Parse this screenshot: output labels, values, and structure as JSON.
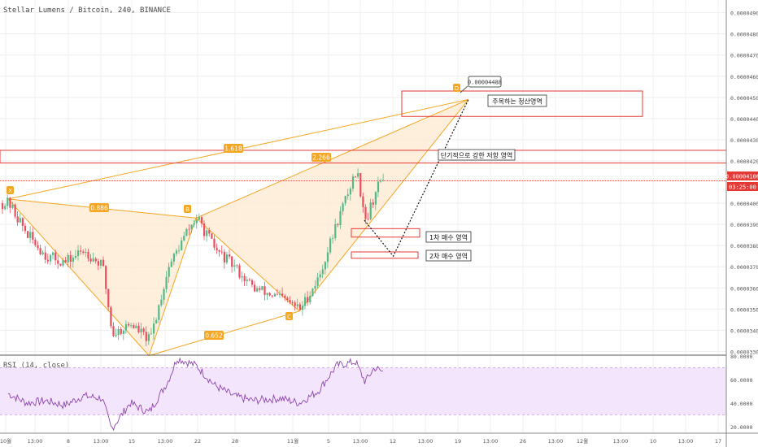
{
  "header": {
    "symbol_title": "Stellar Lumens / Bitcoin, 240, BINANCE"
  },
  "price_axis": {
    "labels": [
      "0.00004900",
      "0.00004800",
      "0.00004700",
      "0.00004600",
      "0.00004500",
      "0.00004400",
      "0.00004300",
      "0.00004200",
      "0.00004000",
      "0.00003900",
      "0.00003800",
      "0.00003700",
      "0.00003600",
      "0.00003500",
      "0.00003400",
      "0.00003300"
    ],
    "current_price": "0.00004106",
    "countdown": "03:25:00"
  },
  "time_axis": {
    "labels": [
      "10월",
      "13:00",
      "8",
      "13:00",
      "15",
      "13:00",
      "22",
      "28",
      "11월",
      "5",
      "13:00",
      "12",
      "13:00",
      "19",
      "13:00",
      "26",
      "13:00",
      "12월",
      "13:00",
      "10",
      "13:00",
      "17"
    ]
  },
  "pattern": {
    "points": [
      "X",
      "B",
      "C",
      "D"
    ],
    "ratios": [
      "0.886",
      "0.652",
      "2.266",
      "1.618"
    ],
    "d_price_label": "0.00004488"
  },
  "annotations": {
    "target_zone": "주목하는 청산영역",
    "resistance_zone": "단기적으로 강한 저항 영역",
    "buy_zone_1": "1차 매수 영역",
    "buy_zone_2": "2차 매수 영역"
  },
  "rsi": {
    "title": "RSI (14, close)",
    "axis_labels": [
      "80.0000",
      "60.0000",
      "40.0000",
      "20.0000"
    ]
  },
  "colors": {
    "candle_up": "#53b987",
    "candle_down": "#eb4d5c",
    "pattern_line": "#f5a623",
    "pattern_fill": "#fde9d2",
    "zone_line": "#e53935",
    "rsi_line": "#8e44ad",
    "rsi_band": "#f3e5fc"
  },
  "chart_data": {
    "type": "candlestick",
    "title": "Stellar Lumens / Bitcoin, 240, BINANCE",
    "ylim": [
      3.29e-05,
      4.96e-05
    ],
    "price_path": [
      [
        "2018-10-01",
        4e-05
      ],
      [
        "2018-10-03",
        3.85e-05
      ],
      [
        "2018-10-05",
        3.75e-05
      ],
      [
        "2018-10-07",
        3.72e-05
      ],
      [
        "2018-10-09",
        3.78e-05
      ],
      [
        "2018-10-11",
        3.7e-05
      ],
      [
        "2018-10-12",
        3.38e-05
      ],
      [
        "2018-10-14",
        3.43e-05
      ],
      [
        "2018-10-16",
        3.35e-05
      ],
      [
        "2018-10-18",
        3.7e-05
      ],
      [
        "2018-10-20",
        3.87e-05
      ],
      [
        "2018-10-21",
        3.93e-05
      ],
      [
        "2018-10-23",
        3.78e-05
      ],
      [
        "2018-10-25",
        3.7e-05
      ],
      [
        "2018-10-27",
        3.6e-05
      ],
      [
        "2018-10-30",
        3.55e-05
      ],
      [
        "2018-11-01",
        3.5e-05
      ],
      [
        "2018-11-03",
        3.65e-05
      ],
      [
        "2018-11-05",
        3.92e-05
      ],
      [
        "2018-11-07",
        4.16e-05
      ],
      [
        "2018-11-08",
        3.92e-05
      ],
      [
        "2018-11-09",
        4.05e-05
      ],
      [
        "2018-11-10",
        4.15e-05
      ]
    ],
    "projection": [
      [
        "2018-11-10",
        3.92e-05
      ],
      [
        "2018-11-11",
        3.75e-05
      ],
      [
        "2018-11-19",
        4.49e-05
      ]
    ],
    "pattern_points": {
      "X": [
        "2018-10-01",
        4.02e-05
      ],
      "A": [
        "2018-10-16",
        3.28e-05
      ],
      "B": [
        "2018-10-21",
        3.93e-05
      ],
      "C": [
        "2018-11-01",
        3.49e-05
      ],
      "D": [
        "2018-11-19",
        4.49e-05
      ]
    },
    "zones": [
      {
        "label": "주목하는 청산영역",
        "y": [
          4.41e-05,
          4.53e-05
        ]
      },
      {
        "label": "단기적으로 강한 저항 영역",
        "y": [
          4.19e-05,
          4.25e-05
        ]
      },
      {
        "label": "1차 매수 영역",
        "y": [
          3.84e-05,
          3.88e-05
        ]
      },
      {
        "label": "2차 매수 영역",
        "y": [
          3.74e-05,
          3.77e-05
        ]
      }
    ],
    "rsi_ylim": [
      15,
      80
    ],
    "rsi_band": [
      30,
      70
    ],
    "rsi_path": [
      [
        "2018-10-01",
        48
      ],
      [
        "2018-10-03",
        40
      ],
      [
        "2018-10-05",
        42
      ],
      [
        "2018-10-07",
        38
      ],
      [
        "2018-10-09",
        46
      ],
      [
        "2018-10-11",
        44
      ],
      [
        "2018-10-12",
        18
      ],
      [
        "2018-10-14",
        40
      ],
      [
        "2018-10-16",
        32
      ],
      [
        "2018-10-18",
        58
      ],
      [
        "2018-10-19",
        78
      ],
      [
        "2018-10-21",
        72
      ],
      [
        "2018-10-23",
        55
      ],
      [
        "2018-10-25",
        46
      ],
      [
        "2018-10-27",
        42
      ],
      [
        "2018-10-30",
        44
      ],
      [
        "2018-11-01",
        40
      ],
      [
        "2018-11-03",
        50
      ],
      [
        "2018-11-05",
        72
      ],
      [
        "2018-11-07",
        75
      ],
      [
        "2018-11-08",
        58
      ],
      [
        "2018-11-09",
        70
      ],
      [
        "2018-11-10",
        66
      ]
    ]
  }
}
